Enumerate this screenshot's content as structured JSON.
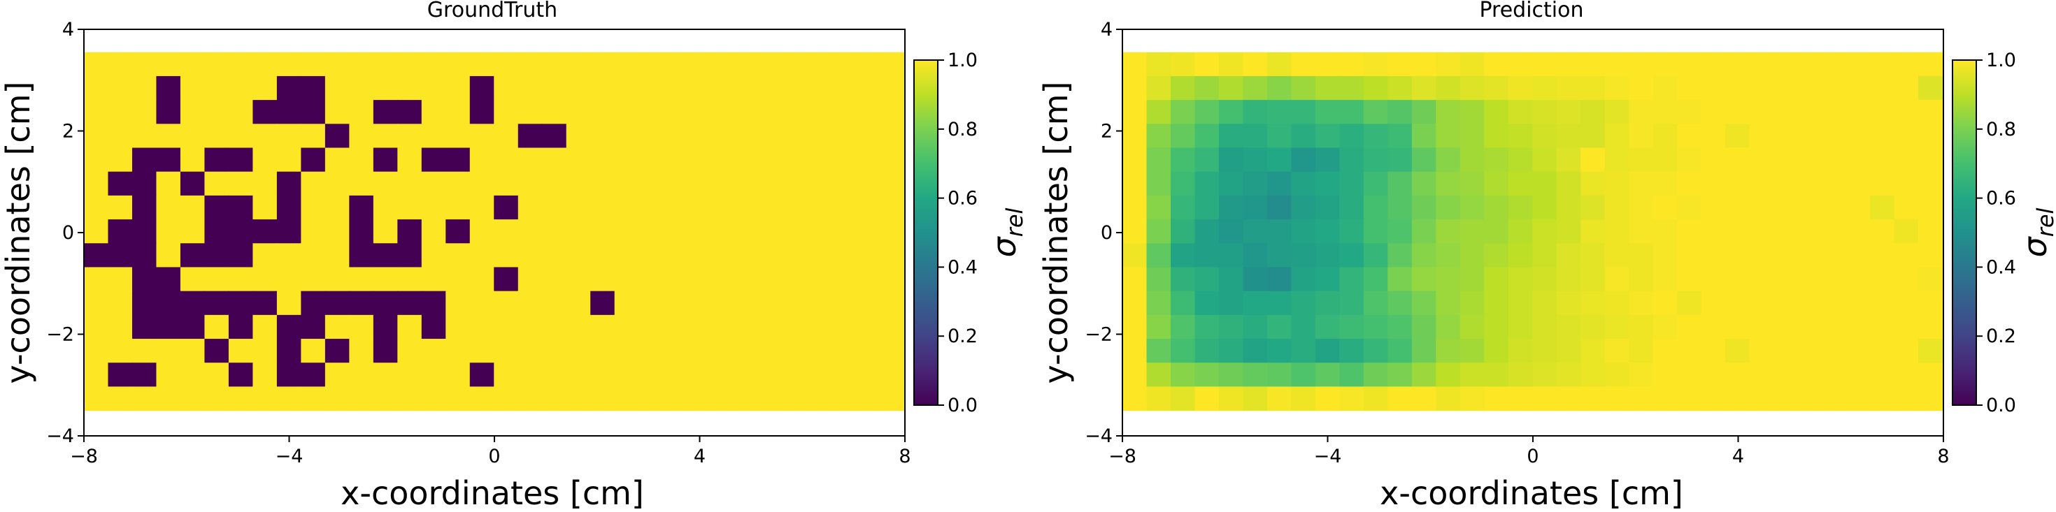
{
  "chart_data": [
    {
      "type": "heatmap",
      "title": "GroundTruth",
      "xlabel": "x-coordinates [cm]",
      "ylabel": "y-coordinates [cm]",
      "xlim": [
        -8,
        8
      ],
      "ylim": [
        -4,
        4
      ],
      "xticks": [
        -8,
        -4,
        0,
        4,
        8
      ],
      "yticks": [
        -4,
        -2,
        0,
        2,
        4
      ],
      "xtick_labels": [
        "−8",
        "−4",
        "0",
        "4",
        "8"
      ],
      "ytick_labels": [
        "−4",
        "−2",
        "0",
        "2",
        "4"
      ],
      "extent": [
        -8,
        8,
        -3.55,
        3.55
      ],
      "grid_dx": 0.47,
      "grid_dy": 0.47,
      "nx": 34,
      "ny": 15,
      "colormap": "viridis",
      "colorbar": {
        "label_base": "σ",
        "label_sub": "rel",
        "range": [
          0.0,
          1.0
        ],
        "ticks": [
          "0.0",
          "0.2",
          "0.4",
          "0.6",
          "0.8",
          "1.0"
        ]
      },
      "default_value": 1.0,
      "cells_note": "value-0 cells as [row, col], row 0 = top",
      "zero_cells": [
        [
          1,
          3
        ],
        [
          1,
          8
        ],
        [
          1,
          9
        ],
        [
          1,
          16
        ],
        [
          2,
          3
        ],
        [
          2,
          7
        ],
        [
          2,
          8
        ],
        [
          2,
          9
        ],
        [
          2,
          12
        ],
        [
          2,
          13
        ],
        [
          2,
          16
        ],
        [
          3,
          10
        ],
        [
          3,
          18
        ],
        [
          3,
          19
        ],
        [
          4,
          2
        ],
        [
          4,
          3
        ],
        [
          4,
          5
        ],
        [
          4,
          6
        ],
        [
          4,
          9
        ],
        [
          4,
          12
        ],
        [
          4,
          14
        ],
        [
          4,
          15
        ],
        [
          5,
          1
        ],
        [
          5,
          2
        ],
        [
          5,
          4
        ],
        [
          5,
          8
        ],
        [
          6,
          2
        ],
        [
          6,
          5
        ],
        [
          6,
          6
        ],
        [
          6,
          8
        ],
        [
          6,
          11
        ],
        [
          6,
          17
        ],
        [
          7,
          1
        ],
        [
          7,
          2
        ],
        [
          7,
          5
        ],
        [
          7,
          6
        ],
        [
          7,
          7
        ],
        [
          7,
          8
        ],
        [
          7,
          11
        ],
        [
          7,
          13
        ],
        [
          7,
          15
        ],
        [
          8,
          0
        ],
        [
          8,
          1
        ],
        [
          8,
          2
        ],
        [
          8,
          4
        ],
        [
          8,
          5
        ],
        [
          8,
          6
        ],
        [
          8,
          11
        ],
        [
          8,
          12
        ],
        [
          8,
          13
        ],
        [
          9,
          2
        ],
        [
          9,
          3
        ],
        [
          9,
          17
        ],
        [
          10,
          2
        ],
        [
          10,
          3
        ],
        [
          10,
          4
        ],
        [
          10,
          5
        ],
        [
          10,
          6
        ],
        [
          10,
          7
        ],
        [
          10,
          9
        ],
        [
          10,
          10
        ],
        [
          10,
          11
        ],
        [
          10,
          12
        ],
        [
          10,
          13
        ],
        [
          10,
          14
        ],
        [
          10,
          21
        ],
        [
          11,
          2
        ],
        [
          11,
          3
        ],
        [
          11,
          4
        ],
        [
          11,
          6
        ],
        [
          11,
          8
        ],
        [
          11,
          9
        ],
        [
          11,
          12
        ],
        [
          11,
          14
        ],
        [
          12,
          5
        ],
        [
          12,
          8
        ],
        [
          12,
          10
        ],
        [
          12,
          12
        ],
        [
          13,
          1
        ],
        [
          13,
          2
        ],
        [
          13,
          6
        ],
        [
          13,
          8
        ],
        [
          13,
          9
        ],
        [
          13,
          16
        ]
      ]
    },
    {
      "type": "heatmap",
      "title": "Prediction",
      "xlabel": "x-coordinates [cm]",
      "ylabel": "y-coordinates [cm]",
      "xlim": [
        -8,
        8
      ],
      "ylim": [
        -4,
        4
      ],
      "xticks": [
        -8,
        -4,
        0,
        4,
        8
      ],
      "yticks": [
        -4,
        -2,
        0,
        2,
        4
      ],
      "xtick_labels": [
        "−8",
        "−4",
        "0",
        "4",
        "8"
      ],
      "ytick_labels": [
        "−4",
        "−2",
        "0",
        "2",
        "4"
      ],
      "extent": [
        -8,
        8,
        -3.55,
        3.55
      ],
      "grid_dx": 0.47,
      "grid_dy": 0.47,
      "nx": 34,
      "ny": 15,
      "colormap": "viridis",
      "colorbar": {
        "label_base": "σ",
        "label_sub": "rel",
        "range": [
          0.0,
          1.0
        ],
        "ticks": [
          "0.0",
          "0.2",
          "0.4",
          "0.6",
          "0.8",
          "1.0"
        ]
      },
      "value_rows_note": "15 rows top to bottom, 34 columns left to right, σ_rel values",
      "values": [
        [
          1.0,
          0.97,
          0.98,
          1.0,
          0.98,
          1.0,
          0.97,
          1.0,
          1.0,
          1.0,
          0.99,
          1.0,
          1.0,
          0.99,
          0.98,
          1.0,
          1.0,
          1.0,
          1.0,
          1.0,
          1.0,
          1.0,
          1.0,
          1.0,
          1.0,
          1.0,
          1.0,
          1.0,
          1.0,
          1.0,
          1.0,
          1.0,
          1.0,
          1.0
        ],
        [
          1.0,
          0.95,
          0.88,
          0.85,
          0.88,
          0.85,
          0.82,
          0.85,
          0.88,
          0.88,
          0.9,
          0.92,
          0.95,
          0.93,
          0.95,
          0.96,
          0.98,
          0.97,
          0.98,
          0.98,
          0.99,
          1.0,
          0.99,
          1.0,
          1.0,
          1.0,
          1.0,
          1.0,
          1.0,
          1.0,
          1.0,
          1.0,
          1.0,
          0.95
        ],
        [
          1.0,
          0.88,
          0.8,
          0.75,
          0.7,
          0.65,
          0.66,
          0.66,
          0.7,
          0.7,
          0.75,
          0.73,
          0.78,
          0.85,
          0.86,
          0.9,
          0.93,
          0.94,
          0.95,
          0.94,
          0.96,
          0.99,
          0.99,
          0.99,
          1.0,
          1.0,
          1.0,
          1.0,
          1.0,
          1.0,
          1.0,
          1.0,
          1.0,
          1.0
        ],
        [
          1.0,
          0.82,
          0.76,
          0.7,
          0.62,
          0.62,
          0.65,
          0.62,
          0.65,
          0.63,
          0.66,
          0.68,
          0.8,
          0.85,
          0.86,
          0.9,
          0.91,
          0.93,
          0.94,
          0.94,
          0.97,
          0.99,
          0.98,
          1.0,
          1.0,
          0.98,
          1.0,
          1.0,
          1.0,
          1.0,
          1.0,
          1.0,
          1.0,
          1.0
        ],
        [
          1.0,
          0.8,
          0.7,
          0.66,
          0.56,
          0.58,
          0.6,
          0.52,
          0.55,
          0.62,
          0.65,
          0.66,
          0.75,
          0.82,
          0.86,
          0.87,
          0.89,
          0.92,
          0.95,
          1.0,
          0.97,
          0.98,
          0.98,
          0.99,
          1.0,
          1.0,
          1.0,
          1.0,
          1.0,
          1.0,
          1.0,
          1.0,
          1.0,
          1.0
        ],
        [
          1.0,
          0.8,
          0.68,
          0.62,
          0.58,
          0.55,
          0.52,
          0.58,
          0.6,
          0.62,
          0.68,
          0.73,
          0.8,
          0.84,
          0.85,
          0.88,
          0.9,
          0.9,
          0.93,
          0.97,
          0.98,
          0.99,
          0.99,
          1.0,
          1.0,
          1.0,
          1.0,
          1.0,
          1.0,
          1.0,
          1.0,
          1.0,
          1.0,
          1.0
        ],
        [
          1.0,
          0.82,
          0.66,
          0.62,
          0.54,
          0.52,
          0.48,
          0.55,
          0.58,
          0.62,
          0.7,
          0.73,
          0.78,
          0.82,
          0.84,
          0.86,
          0.88,
          0.9,
          0.93,
          0.95,
          0.98,
          0.99,
          1.0,
          0.99,
          1.0,
          1.0,
          1.0,
          1.0,
          1.0,
          1.0,
          1.0,
          0.97,
          1.0,
          1.0
        ],
        [
          1.0,
          0.8,
          0.64,
          0.56,
          0.52,
          0.55,
          0.55,
          0.58,
          0.6,
          0.63,
          0.7,
          0.72,
          0.8,
          0.85,
          0.86,
          0.86,
          0.89,
          0.92,
          0.93,
          0.97,
          0.98,
          0.99,
          0.99,
          1.0,
          1.0,
          1.0,
          1.0,
          1.0,
          1.0,
          1.0,
          1.0,
          1.0,
          0.98,
          1.0
        ],
        [
          0.98,
          0.75,
          0.58,
          0.56,
          0.56,
          0.52,
          0.55,
          0.56,
          0.58,
          0.6,
          0.66,
          0.75,
          0.82,
          0.84,
          0.86,
          0.88,
          0.9,
          0.92,
          0.95,
          0.96,
          0.98,
          0.98,
          0.99,
          1.0,
          1.0,
          1.0,
          1.0,
          1.0,
          1.0,
          1.0,
          1.0,
          1.0,
          1.0,
          1.0
        ],
        [
          1.0,
          0.78,
          0.64,
          0.62,
          0.58,
          0.5,
          0.48,
          0.58,
          0.6,
          0.65,
          0.7,
          0.8,
          0.84,
          0.85,
          0.86,
          0.9,
          0.92,
          0.93,
          0.95,
          0.96,
          0.99,
          0.98,
          0.99,
          1.0,
          1.0,
          1.0,
          1.0,
          1.0,
          1.0,
          1.0,
          1.0,
          1.0,
          1.0,
          0.99
        ],
        [
          1.0,
          0.8,
          0.68,
          0.6,
          0.58,
          0.6,
          0.6,
          0.62,
          0.64,
          0.65,
          0.72,
          0.75,
          0.8,
          0.85,
          0.87,
          0.9,
          0.92,
          0.94,
          0.96,
          0.97,
          0.98,
          0.99,
          1.0,
          0.98,
          1.0,
          1.0,
          1.0,
          1.0,
          1.0,
          1.0,
          1.0,
          1.0,
          1.0,
          1.0
        ],
        [
          1.0,
          0.82,
          0.72,
          0.66,
          0.64,
          0.62,
          0.65,
          0.62,
          0.66,
          0.68,
          0.7,
          0.72,
          0.78,
          0.84,
          0.88,
          0.9,
          0.92,
          0.94,
          0.95,
          0.96,
          0.97,
          0.98,
          0.99,
          1.0,
          1.0,
          1.0,
          1.0,
          1.0,
          1.0,
          1.0,
          1.0,
          1.0,
          1.0,
          1.0
        ],
        [
          1.0,
          0.76,
          0.7,
          0.64,
          0.62,
          0.58,
          0.6,
          0.62,
          0.58,
          0.62,
          0.66,
          0.7,
          0.78,
          0.85,
          0.86,
          0.9,
          0.93,
          0.94,
          0.95,
          0.97,
          0.99,
          0.98,
          1.0,
          1.0,
          1.0,
          0.98,
          1.0,
          1.0,
          1.0,
          1.0,
          1.0,
          1.0,
          1.0,
          0.97
        ],
        [
          1.0,
          0.88,
          0.82,
          0.8,
          0.78,
          0.76,
          0.75,
          0.72,
          0.75,
          0.72,
          0.78,
          0.8,
          0.85,
          0.9,
          0.92,
          0.92,
          0.94,
          0.95,
          0.96,
          0.97,
          0.98,
          0.99,
          1.0,
          1.0,
          1.0,
          1.0,
          1.0,
          1.0,
          1.0,
          1.0,
          1.0,
          1.0,
          1.0,
          1.0
        ],
        [
          1.0,
          0.98,
          0.96,
          1.0,
          0.98,
          0.96,
          0.99,
          0.98,
          1.0,
          0.99,
          0.98,
          1.0,
          1.0,
          0.98,
          0.99,
          1.0,
          1.0,
          1.0,
          1.0,
          1.0,
          1.0,
          1.0,
          1.0,
          1.0,
          1.0,
          1.0,
          1.0,
          1.0,
          1.0,
          1.0,
          1.0,
          1.0,
          1.0,
          1.0
        ]
      ]
    }
  ]
}
